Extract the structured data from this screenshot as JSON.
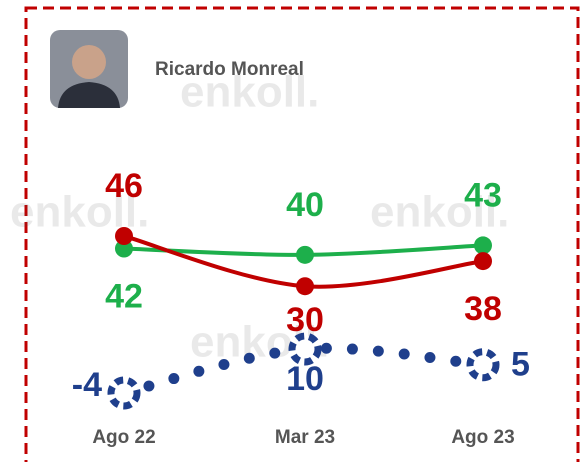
{
  "chart_data": {
    "type": "line",
    "title": "Ricardo Monreal",
    "watermark": "enkoll.",
    "categories": [
      "Ago 22",
      "Mar 23",
      "Ago 23"
    ],
    "series": [
      {
        "name": null,
        "color": "#1daf4b",
        "values": [
          42,
          40,
          43
        ]
      },
      {
        "name": null,
        "color": "#c00000",
        "values": [
          46,
          30,
          38
        ]
      },
      {
        "name": null,
        "color": "#1f3f8c",
        "values": [
          -4,
          10,
          5
        ],
        "dotted": true
      }
    ]
  }
}
